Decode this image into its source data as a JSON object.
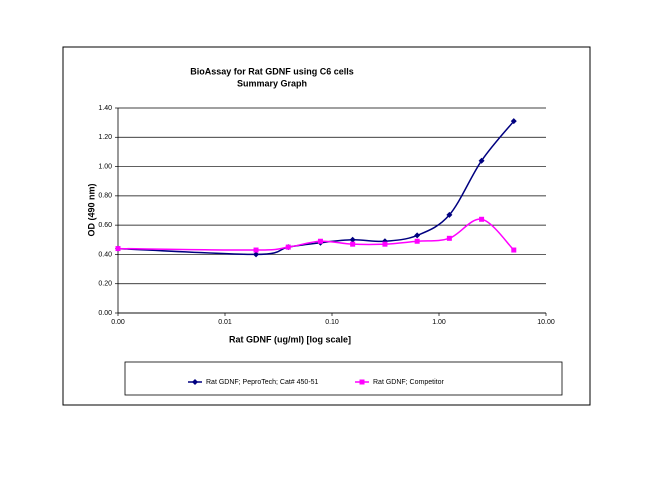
{
  "chart_data": {
    "type": "line",
    "title": "BioAssay for Rat GDNF using C6 cells",
    "subtitle": "Summary Graph",
    "x_label": "Rat GDNF (ug/ml) [log scale]",
    "y_label": "OD (490 nm)",
    "xscale": "log",
    "grid": true,
    "legend": "bottom",
    "xlim": [
      0.001,
      10
    ],
    "xticks": [
      {
        "value": 0.001,
        "label": "0.00"
      },
      {
        "value": 0.01,
        "label": "0.01"
      },
      {
        "value": 0.1,
        "label": "0.10"
      },
      {
        "value": 1,
        "label": "1.00"
      },
      {
        "value": 10,
        "label": "10.00"
      }
    ],
    "ylim": [
      0,
      1.4
    ],
    "yticks": [
      {
        "value": 0,
        "label": "0.00"
      },
      {
        "value": 0.2,
        "label": "0.20"
      },
      {
        "value": 0.4,
        "label": "0.40"
      },
      {
        "value": 0.6,
        "label": "0.60"
      },
      {
        "value": 0.8,
        "label": "0.80"
      },
      {
        "value": 1,
        "label": "1.00"
      },
      {
        "value": 1.2,
        "label": "1.20"
      },
      {
        "value": 1.4,
        "label": "1.40"
      }
    ],
    "x": [
      0.001,
      0.0195,
      0.039,
      0.078,
      0.156,
      0.3125,
      0.625,
      1.25,
      2.5,
      5
    ],
    "series": [
      {
        "name": "Rat GDNF; PeproTech; Cat# 450-51",
        "color": "#000080",
        "marker": "diamond",
        "values": [
          0.44,
          0.4,
          0.45,
          0.48,
          0.5,
          0.49,
          0.53,
          0.67,
          1.04,
          1.31
        ]
      },
      {
        "name": "Rat GDNF; Competitor",
        "color": "#ff00ff",
        "marker": "square",
        "values": [
          0.44,
          0.43,
          0.45,
          0.49,
          0.47,
          0.47,
          0.49,
          0.51,
          0.64,
          0.43
        ]
      }
    ]
  }
}
